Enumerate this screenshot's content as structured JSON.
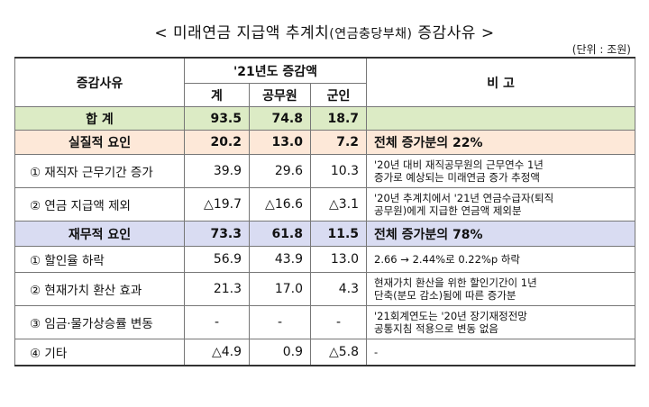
{
  "title_main": "< 미래연금 지급액 추계치",
  "title_paren": "(연금충당부채)",
  "title_end": " 증감사유 >",
  "unit": "(단위 : 조원)",
  "header": {
    "reason": "증감사유",
    "group": "'21년도 증감액",
    "total": "계",
    "civil": "공무원",
    "military": "군인",
    "remark": "비 고"
  },
  "rows": {
    "sum": {
      "label": "합 계",
      "total": "93.5",
      "civil": "74.8",
      "military": "18.7",
      "remark": ""
    },
    "real": {
      "label": "실질적 요인",
      "total": "20.2",
      "civil": "13.0",
      "military": "7.2",
      "remark": "전체 증가분의 22%"
    },
    "real1": {
      "label": "① 재직자 근무기간 증가",
      "total": "39.9",
      "civil": "29.6",
      "military": "10.3",
      "remark1": "'20년 대비 재직공무원의 근무연수 1년",
      "remark2": "증가로 예상되는 미래연금 증가 추정액"
    },
    "real2": {
      "label": "② 연금 지급액 제외",
      "total": "△19.7",
      "civil": "△16.6",
      "military": "△3.1",
      "remark1": "'20년 추계치에서 '21년 연금수급자(퇴직",
      "remark2": "공무원)에게 지급한 연금액 제외분"
    },
    "fin": {
      "label": "재무적 요인",
      "total": "73.3",
      "civil": "61.8",
      "military": "11.5",
      "remark": "전체 증가분의 78%"
    },
    "fin1": {
      "label": "① 할인율 하락",
      "total": "56.9",
      "civil": "43.9",
      "military": "13.0",
      "remark1": "2.66 → 2.44%로 0.22%p 하락"
    },
    "fin2": {
      "label": "② 현재가치 환산 효과",
      "total": "21.3",
      "civil": "17.0",
      "military": "4.3",
      "remark1": "현재가치 환산을 위한 할인기간이 1년",
      "remark2": "단축(분모 감소)됨에 따른 증가분"
    },
    "fin3": {
      "label": "③ 임금·물가상승률 변동",
      "total": "-",
      "civil": "-",
      "military": "-",
      "remark1": "'21회계연도는 '20년 장기재정전망",
      "remark2": "공통지침 적용으로 변동 없음"
    },
    "fin4": {
      "label": "④ 기타",
      "total": "△4.9",
      "civil": "0.9",
      "military": "△5.8",
      "remark1": "-"
    }
  }
}
